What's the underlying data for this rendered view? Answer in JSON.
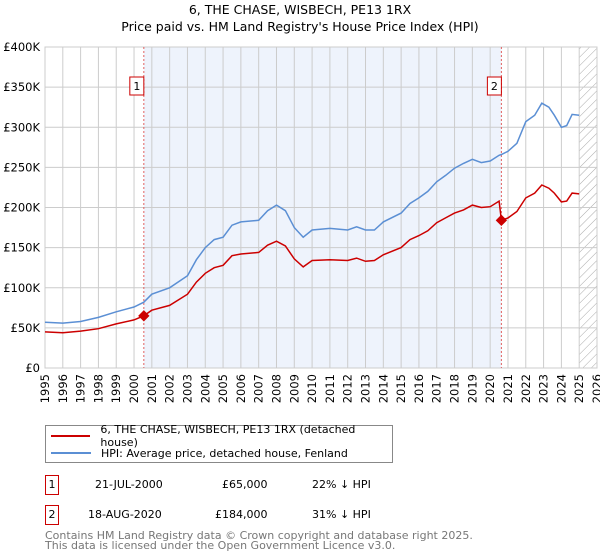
{
  "title": "6, THE CHASE, WISBECH, PE13 1RX",
  "subtitle": "Price paid vs. HM Land Registry's House Price Index (HPI)",
  "chart_data": {
    "type": "line",
    "title": "6, THE CHASE, WISBECH, PE13 1RX",
    "subtitle": "Price paid vs. HM Land Registry's House Price Index (HPI)",
    "xlim": [
      1995,
      2026
    ],
    "ylim": [
      0,
      400000
    ],
    "x_ticks": [
      "1995",
      "1996",
      "1997",
      "1998",
      "1999",
      "2000",
      "2001",
      "2002",
      "2003",
      "2004",
      "2005",
      "2006",
      "2007",
      "2008",
      "2009",
      "2010",
      "2011",
      "2012",
      "2013",
      "2014",
      "2015",
      "2016",
      "2017",
      "2018",
      "2019",
      "2020",
      "2021",
      "2022",
      "2023",
      "2024",
      "2025",
      "2026"
    ],
    "y_ticks": [
      {
        "v": 0,
        "label": "£0"
      },
      {
        "v": 50000,
        "label": "£50K"
      },
      {
        "v": 100000,
        "label": "£100K"
      },
      {
        "v": 150000,
        "label": "£150K"
      },
      {
        "v": 200000,
        "label": "£200K"
      },
      {
        "v": 250000,
        "label": "£250K"
      },
      {
        "v": 300000,
        "label": "£300K"
      },
      {
        "v": 350000,
        "label": "£350K"
      },
      {
        "v": 400000,
        "label": "£400K"
      }
    ],
    "grid": true,
    "shaded_range": [
      2000.55,
      2020.63
    ],
    "forecast_hatch_from": 2025.0,
    "series": [
      {
        "name": "6, THE CHASE, WISBECH, PE13 1RX (detached house)",
        "color": "#cc0000",
        "x": [
          1995,
          1996,
          1997,
          1998,
          1999,
          2000,
          2000.55,
          2001,
          2002,
          2003,
          2003.5,
          2004,
          2004.5,
          2005,
          2005.5,
          2006,
          2007,
          2007.5,
          2008,
          2008.5,
          2009,
          2009.5,
          2010,
          2011,
          2012,
          2012.5,
          2013,
          2013.5,
          2014,
          2015,
          2015.5,
          2016,
          2016.5,
          2017,
          2017.5,
          2018,
          2018.5,
          2019,
          2019.5,
          2020,
          2020.5,
          2020.63,
          2021,
          2021.5,
          2022,
          2022.5,
          2022.9,
          2023.3,
          2023.6,
          2024,
          2024.3,
          2024.6,
          2025
        ],
        "y": [
          45000,
          44000,
          46000,
          49000,
          55000,
          60000,
          65000,
          72000,
          78000,
          92000,
          107000,
          118000,
          125000,
          128000,
          140000,
          142000,
          144000,
          153000,
          158000,
          152000,
          136000,
          126000,
          134000,
          135000,
          134000,
          137000,
          133000,
          134000,
          141000,
          150000,
          160000,
          165000,
          171000,
          181000,
          187000,
          193000,
          197000,
          203000,
          200000,
          201000,
          208000,
          184000,
          187000,
          195000,
          212000,
          218000,
          228000,
          224000,
          218000,
          207000,
          208000,
          218000,
          217000
        ]
      },
      {
        "name": "HPI: Average price, detached house, Fenland",
        "color": "#5b8fd4",
        "x": [
          1995,
          1996,
          1997,
          1998,
          1999,
          2000,
          2000.55,
          2001,
          2002,
          2003,
          2003.5,
          2004,
          2004.5,
          2005,
          2005.5,
          2006,
          2007,
          2007.5,
          2008,
          2008.5,
          2009,
          2009.5,
          2010,
          2011,
          2012,
          2012.5,
          2013,
          2013.5,
          2014,
          2015,
          2015.5,
          2016,
          2016.5,
          2017,
          2017.5,
          2018,
          2018.5,
          2019,
          2019.5,
          2020,
          2020.5,
          2020.63,
          2021,
          2021.5,
          2022,
          2022.5,
          2022.9,
          2023.3,
          2023.6,
          2024,
          2024.3,
          2024.6,
          2025
        ],
        "y": [
          57000,
          56000,
          58000,
          63000,
          70000,
          76000,
          82000,
          92000,
          100000,
          115000,
          135000,
          150000,
          160000,
          163000,
          178000,
          182000,
          184000,
          196000,
          203000,
          196000,
          175000,
          163000,
          172000,
          174000,
          172000,
          176000,
          172000,
          172000,
          182000,
          193000,
          205000,
          212000,
          220000,
          232000,
          240000,
          249000,
          255000,
          260000,
          256000,
          258000,
          265000,
          266000,
          270000,
          280000,
          307000,
          315000,
          330000,
          325000,
          315000,
          300000,
          302000,
          316000,
          315000
        ]
      }
    ],
    "annotations": [
      {
        "label": "1",
        "x": 2000.55,
        "y": 65000
      },
      {
        "label": "2",
        "x": 2020.63,
        "y": 184000
      }
    ]
  },
  "legend": [
    "6, THE CHASE, WISBECH, PE13 1RX (detached house)",
    "HPI: Average price, detached house, Fenland"
  ],
  "transactions": [
    {
      "num": "1",
      "date": "21-JUL-2000",
      "price": "£65,000",
      "hpi": "22% ↓ HPI"
    },
    {
      "num": "2",
      "date": "18-AUG-2020",
      "price": "£184,000",
      "hpi": "31% ↓ HPI"
    }
  ],
  "footer": [
    "Contains HM Land Registry data © Crown copyright and database right 2025.",
    "This data is licensed under the Open Government Licence v3.0."
  ]
}
